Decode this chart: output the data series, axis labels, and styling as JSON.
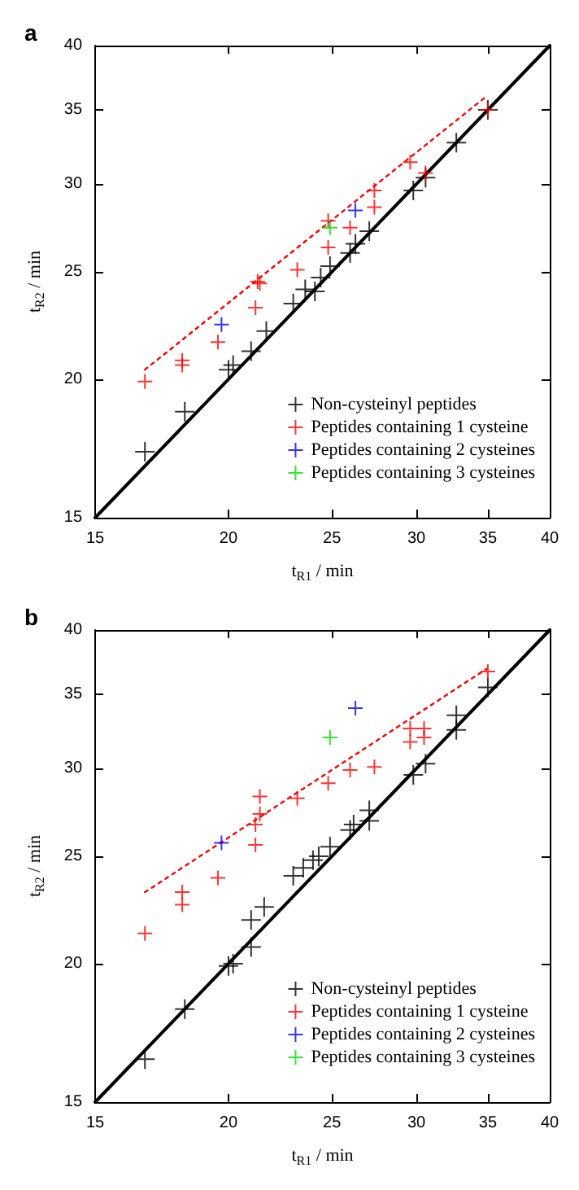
{
  "chart_data": [
    {
      "type": "scatter",
      "title": "a",
      "xlabel": "t$_{R1}$ / min",
      "ylabel": "t$_{R2}$ / min",
      "log": "xy",
      "xlim": [
        15,
        40
      ],
      "ylim": [
        15,
        40
      ],
      "xticks": [
        15,
        20,
        25,
        30,
        35,
        40
      ],
      "yticks": [
        15,
        20,
        25,
        30,
        35,
        40
      ],
      "grid": false,
      "legend": "bottom right",
      "marker": "cross",
      "series": [
        {
          "name": "Non-cysteinyl peptides",
          "color": "#000000",
          "x": [
            16.7,
            18.2,
            20.0,
            20.2,
            21.0,
            21.7,
            23.0,
            23.6,
            24.1,
            24.4,
            24.9,
            26.0,
            26.3,
            27.1,
            29.8,
            30.6,
            32.7,
            35.0
          ],
          "values": [
            17.2,
            18.7,
            20.4,
            20.6,
            21.2,
            22.1,
            23.4,
            24.1,
            24.0,
            24.7,
            25.3,
            26.0,
            26.5,
            27.2,
            29.6,
            30.4,
            32.7,
            35.0
          ]
        },
        {
          "name": "Peptides containing 1 cysteine",
          "color": "#ff0000",
          "x": [
            16.7,
            18.1,
            18.1,
            19.55,
            21.2,
            21.3,
            21.4,
            23.2,
            24.8,
            24.8,
            26.0,
            27.4,
            27.4,
            29.6,
            30.6,
            35.0
          ],
          "values": [
            19.9,
            20.8,
            20.6,
            21.6,
            23.2,
            24.5,
            24.4,
            25.1,
            26.3,
            27.8,
            27.4,
            28.6,
            29.6,
            31.4,
            30.7,
            35.0
          ]
        },
        {
          "name": "Peptides containing 2 cysteines",
          "color": "#0000ff",
          "x": [
            19.7,
            26.3
          ],
          "values": [
            22.4,
            28.4
          ]
        },
        {
          "name": "Peptides containing 3 cysteines",
          "color": "#00dd00",
          "x": [
            24.9
          ],
          "values": [
            27.4
          ]
        },
        {
          "type": "line",
          "color": "#000000",
          "line_style": "solid",
          "marker": "none",
          "x": [
            15,
            40
          ],
          "values": [
            15,
            40
          ]
        },
        {
          "type": "line",
          "color": "#ff0000",
          "line_style": "dotted",
          "marker": "none",
          "x": [
            16.7,
            34.9
          ],
          "values": [
            20.4,
            36.0
          ]
        }
      ]
    },
    {
      "type": "scatter",
      "title": "b",
      "xlabel": "t$_{R1}$ / min",
      "ylabel": "t$_{R2}$ / min",
      "log": "xy",
      "xlim": [
        15,
        40
      ],
      "ylim": [
        15,
        40
      ],
      "xticks": [
        15,
        20,
        25,
        30,
        35,
        40
      ],
      "yticks": [
        15,
        20,
        25,
        30,
        35,
        40
      ],
      "grid": false,
      "legend": "bottom right",
      "marker": "cross",
      "series": [
        {
          "name": "Non-cysteinyl peptides",
          "color": "#000000",
          "x": [
            16.7,
            18.2,
            20.0,
            20.2,
            21.0,
            21.0,
            21.6,
            23.0,
            23.5,
            24.0,
            24.3,
            24.9,
            26.0,
            26.2,
            27.1,
            27.1,
            29.8,
            30.6,
            32.7,
            32.7,
            35.0
          ],
          "values": [
            16.4,
            18.2,
            19.9,
            20.0,
            20.7,
            21.9,
            22.5,
            24.0,
            24.4,
            24.8,
            25.0,
            25.5,
            26.4,
            26.7,
            26.9,
            27.5,
            29.6,
            30.3,
            32.5,
            33.5,
            35.5
          ]
        },
        {
          "name": "Peptides containing 1 cysteine",
          "color": "#ff0000",
          "x": [
            16.7,
            18.1,
            18.1,
            19.55,
            21.2,
            21.2,
            21.4,
            21.4,
            23.2,
            24.8,
            26.0,
            27.4,
            29.6,
            29.6,
            30.5,
            30.5,
            35.0
          ],
          "values": [
            21.3,
            22.6,
            23.2,
            23.9,
            25.6,
            26.7,
            27.3,
            28.3,
            28.2,
            29.1,
            29.9,
            30.1,
            31.7,
            32.6,
            32.0,
            32.6,
            36.7
          ]
        },
        {
          "name": "Peptides containing 2 cysteines",
          "color": "#0000ff",
          "x": [
            19.7,
            26.3
          ],
          "values": [
            25.7,
            34.0
          ]
        },
        {
          "name": "Peptides containing 3 cysteines",
          "color": "#00dd00",
          "x": [
            24.9
          ],
          "values": [
            32.0
          ]
        },
        {
          "type": "line",
          "color": "#000000",
          "line_style": "solid",
          "marker": "none",
          "x": [
            15,
            40
          ],
          "values": [
            15,
            40
          ]
        },
        {
          "type": "line",
          "color": "#ff0000",
          "line_style": "dotted",
          "marker": "none",
          "x": [
            16.7,
            34.9
          ],
          "values": [
            23.2,
            36.9
          ]
        }
      ]
    }
  ]
}
